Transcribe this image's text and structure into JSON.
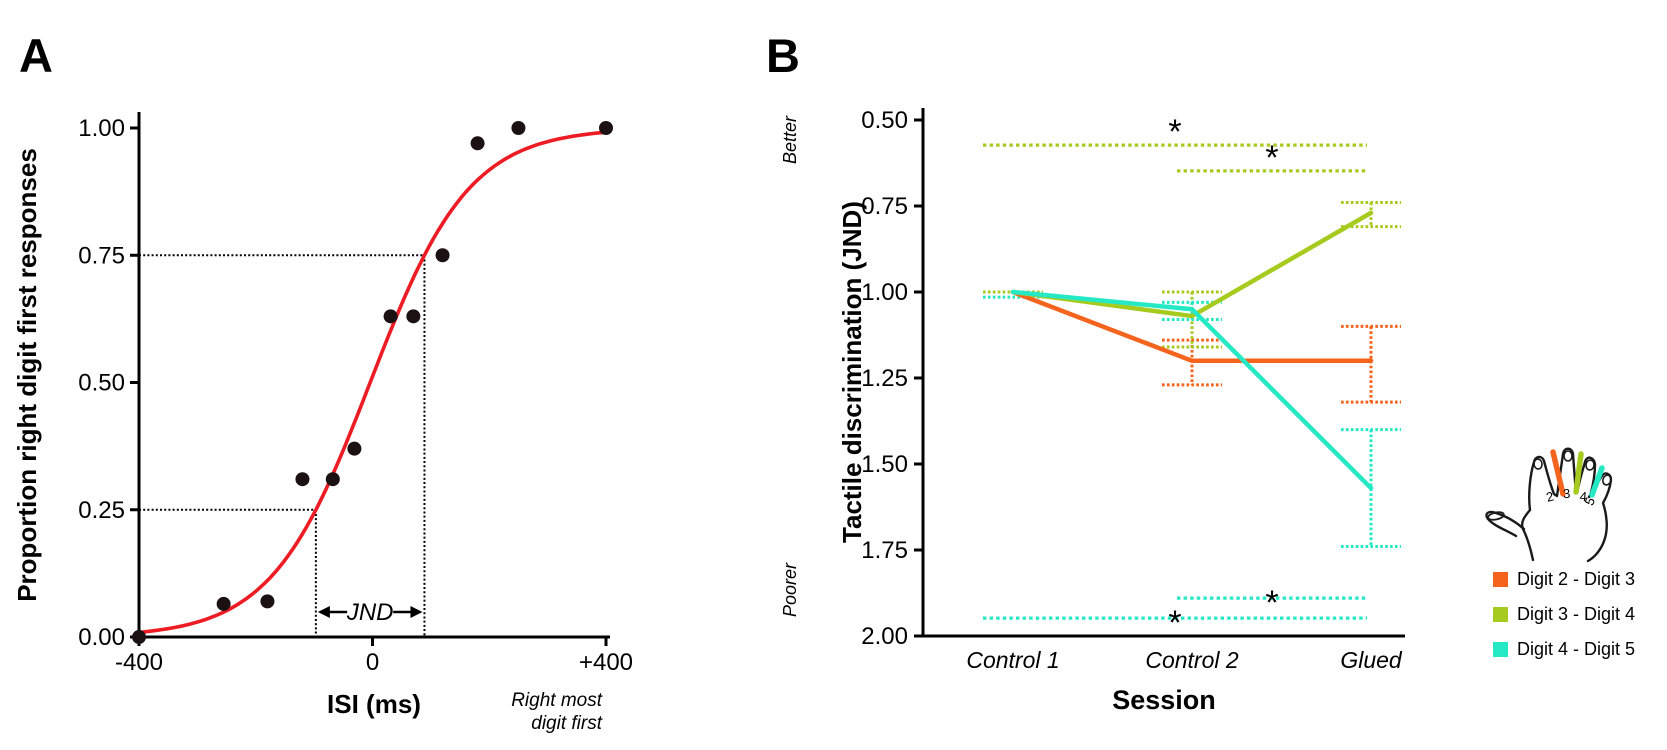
{
  "panel_a_label": "A",
  "panel_b_label": "B",
  "chart_data": [
    {
      "type": "scatter",
      "panel_label": "A",
      "title": "",
      "xlabel": "ISI (ms)",
      "ylabel": "Proportion right digit first responses",
      "xlim": [
        -400,
        400
      ],
      "ylim": [
        0,
        1
      ],
      "x_ticks": [
        {
          "v": -400,
          "label": "-400"
        },
        {
          "v": 0,
          "label": "0"
        },
        {
          "v": 400,
          "label": "+400"
        }
      ],
      "y_ticks": [
        {
          "v": 0.0,
          "label": "0.00"
        },
        {
          "v": 0.25,
          "label": "0.25"
        },
        {
          "v": 0.5,
          "label": "0.50"
        },
        {
          "v": 0.75,
          "label": "0.75"
        },
        {
          "v": 1.0,
          "label": "1.00"
        }
      ],
      "points": [
        [
          -400,
          0.0
        ],
        [
          -255,
          0.065
        ],
        [
          -180,
          0.07
        ],
        [
          -120,
          0.31
        ],
        [
          -68,
          0.31
        ],
        [
          -31,
          0.37
        ],
        [
          31,
          0.63
        ],
        [
          70,
          0.63
        ],
        [
          120,
          0.75
        ],
        [
          180,
          0.97
        ],
        [
          250,
          1.0
        ],
        [
          400,
          1.0
        ]
      ],
      "point_color": "#1b1113",
      "curve": {
        "model": "logistic",
        "pse": -4,
        "scale": 84.6,
        "color": "#ed1c24"
      },
      "guides": {
        "lower": {
          "x": -97,
          "y": 0.25
        },
        "upper": {
          "x": 89,
          "y": 0.75
        }
      },
      "jnd_label": "JND",
      "note_lines": [
        "Right most",
        "digit first"
      ]
    },
    {
      "type": "line",
      "panel_label": "B",
      "title": "",
      "xlabel": "Session",
      "ylabel": "Tactile discrimination (JND)",
      "y_axis_reversed": true,
      "ylim": [
        0.5,
        2.0
      ],
      "direction_labels": {
        "top": "Better",
        "bottom": "Poorer"
      },
      "y_ticks": [
        {
          "v": 0.5,
          "label": "0.50"
        },
        {
          "v": 0.75,
          "label": "0.75"
        },
        {
          "v": 1.0,
          "label": "1.00"
        },
        {
          "v": 1.25,
          "label": "1.25"
        },
        {
          "v": 1.5,
          "label": "1.50"
        },
        {
          "v": 1.75,
          "label": "1.75"
        },
        {
          "v": 2.0,
          "label": "2.00"
        }
      ],
      "categories": [
        "Control 1",
        "Control 2",
        "Glued"
      ],
      "series": [
        {
          "name": "Digit 2 - Digit 3",
          "color": "#f5641d",
          "values": [
            1.0,
            1.2,
            1.2
          ],
          "errors": [
            null,
            [
              1.14,
              1.27
            ],
            [
              1.1,
              1.32
            ]
          ]
        },
        {
          "name": "Digit 3 - Digit 4",
          "color": "#a7ca1f",
          "values": [
            1.0,
            1.07,
            0.77
          ],
          "errors": [
            [
              1.0,
              1.0
            ],
            [
              1.0,
              1.16
            ],
            [
              0.74,
              0.81
            ]
          ]
        },
        {
          "name": "Digit 4 - Digit 5",
          "color": "#25e8c5",
          "values": [
            1.0,
            1.05,
            1.57
          ],
          "errors": [
            [
              1.015,
              1.015
            ],
            [
              1.03,
              1.08
            ],
            [
              1.4,
              1.74
            ]
          ]
        }
      ],
      "significance": [
        {
          "series_index": 1,
          "y": 0.573,
          "from": 0,
          "to": 2,
          "star": "*",
          "side": "above"
        },
        {
          "series_index": 1,
          "y": 0.648,
          "from": 1,
          "to": 2,
          "star": "*",
          "side": "above"
        },
        {
          "series_index": 2,
          "y": 1.89,
          "from": 1,
          "to": 2,
          "star": "*",
          "side": "below"
        },
        {
          "series_index": 2,
          "y": 1.948,
          "from": 0,
          "to": 2,
          "star": "*",
          "side": "below"
        }
      ],
      "hand_icon": {
        "digit_labels": [
          "2",
          "3",
          "4",
          "5"
        ]
      },
      "legend": [
        "Digit 2 - Digit 3",
        "Digit 3 - Digit 4",
        "Digit 4 - Digit 5"
      ]
    }
  ]
}
